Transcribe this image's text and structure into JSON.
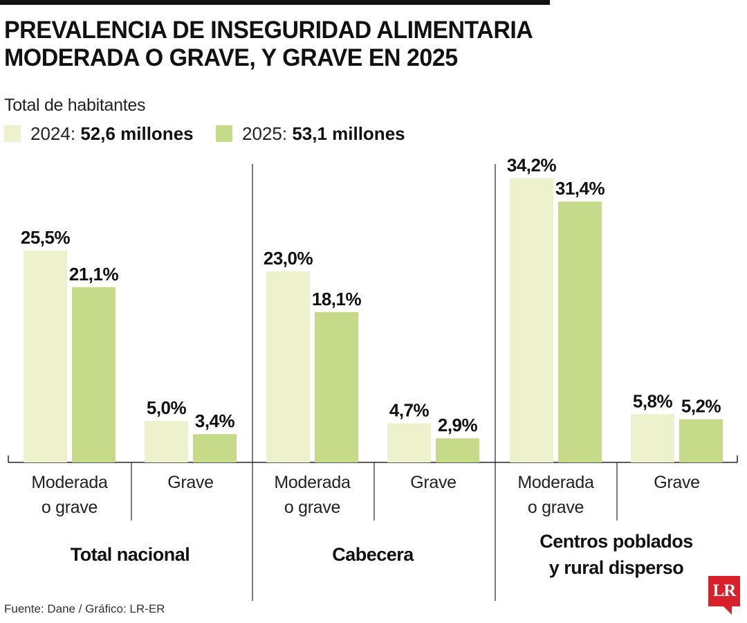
{
  "title_lines": [
    "PREVALENCIA DE INSEGURIDAD ALIMENTARIA",
    "MODERADA O GRAVE, Y GRAVE EN 2025"
  ],
  "subtitle": "Total de habitantes",
  "legend": [
    {
      "year": "2024:",
      "value": "52,6 millones",
      "color": "#eef2cc"
    },
    {
      "year": "2025:",
      "value": "53,1 millones",
      "color": "#c6da8a"
    }
  ],
  "footer": "Fuente: Dane / Gráfico: LR-ER",
  "logo_text": "LR",
  "chart_data": {
    "type": "bar",
    "unit": "%",
    "ylim": [
      0,
      35
    ],
    "grid": false,
    "legend_position": "top-left",
    "series": [
      {
        "name": "2024",
        "color": "#eef2cc"
      },
      {
        "name": "2025",
        "color": "#c6da8a"
      }
    ],
    "groups": [
      {
        "label": [
          "Total nacional"
        ],
        "categories": [
          {
            "label": [
              "Moderada",
              "o grave"
            ],
            "values": [
              25.5,
              21.1
            ],
            "value_labels": [
              "25,5%",
              "21,1%"
            ]
          },
          {
            "label": [
              "Grave"
            ],
            "values": [
              5.0,
              3.4
            ],
            "value_labels": [
              "5,0%",
              "3,4%"
            ]
          }
        ]
      },
      {
        "label": [
          "Cabecera"
        ],
        "categories": [
          {
            "label": [
              "Moderada",
              "o grave"
            ],
            "values": [
              23.0,
              18.1
            ],
            "value_labels": [
              "23,0%",
              "18,1%"
            ]
          },
          {
            "label": [
              "Grave"
            ],
            "values": [
              4.7,
              2.9
            ],
            "value_labels": [
              "4,7%",
              "2,9%"
            ]
          }
        ]
      },
      {
        "label": [
          "Centros poblados",
          "y rural disperso"
        ],
        "categories": [
          {
            "label": [
              "Moderada",
              "o grave"
            ],
            "values": [
              34.2,
              31.4
            ],
            "value_labels": [
              "34,2%",
              "31,4%"
            ]
          },
          {
            "label": [
              "Grave"
            ],
            "values": [
              5.8,
              5.2
            ],
            "value_labels": [
              "5,8%",
              "5,2%"
            ]
          }
        ]
      }
    ]
  }
}
